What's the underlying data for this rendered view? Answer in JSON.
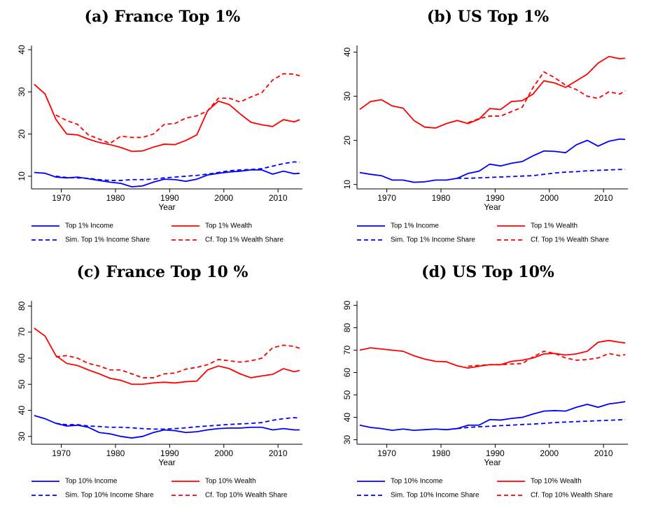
{
  "chart_data": [
    {
      "type": "line",
      "title": "(a) France Top 1%",
      "xlabel": "Year",
      "x": [
        1965,
        1967,
        1969,
        1971,
        1973,
        1975,
        1977,
        1979,
        1981,
        1983,
        1985,
        1987,
        1989,
        1991,
        1993,
        1995,
        1997,
        1999,
        2001,
        2003,
        2005,
        2007,
        2009,
        2011,
        2013,
        2014
      ],
      "xlim": [
        1964.5,
        2014.5
      ],
      "xticks": [
        1970,
        1980,
        1990,
        2000,
        2010
      ],
      "ylim": [
        7,
        41
      ],
      "yticks": [
        10,
        20,
        30,
        40
      ],
      "series": [
        {
          "name": "Top 1% Income",
          "color": "#0000ff",
          "dashed": false,
          "values": [
            10.9,
            10.7,
            9.8,
            9.6,
            9.8,
            9.4,
            9.0,
            8.6,
            8.3,
            7.5,
            7.7,
            8.6,
            9.3,
            9.2,
            8.8,
            9.3,
            10.3,
            10.7,
            11.0,
            11.2,
            11.5,
            11.5,
            10.5,
            11.2,
            10.6,
            10.7
          ]
        },
        {
          "name": "Top 1% Wealth",
          "color": "#ff0000",
          "dashed": false,
          "values": [
            31.8,
            29.5,
            23.5,
            20.0,
            19.8,
            18.8,
            18.0,
            17.5,
            16.8,
            15.9,
            16.0,
            16.9,
            17.6,
            17.5,
            18.5,
            19.8,
            25.5,
            27.8,
            27.0,
            24.8,
            22.8,
            22.2,
            21.8,
            23.4,
            22.9,
            23.4
          ]
        },
        {
          "name": "Sim. Top 1% Income Share",
          "color": "#0000ff",
          "dashed": true,
          "values": [
            null,
            null,
            10.0,
            9.7,
            9.6,
            9.5,
            9.2,
            9.0,
            9.0,
            9.2,
            9.2,
            9.3,
            9.6,
            9.8,
            10.0,
            10.2,
            10.5,
            10.9,
            11.3,
            11.5,
            11.6,
            11.8,
            12.4,
            13.0,
            13.4,
            13.3
          ]
        },
        {
          "name": "Cf. Top 1% Wealth Share",
          "color": "#ff0000",
          "dashed": true,
          "values": [
            null,
            null,
            24.5,
            23.2,
            22.3,
            19.8,
            18.8,
            17.8,
            19.5,
            19.2,
            19.2,
            20.0,
            22.3,
            22.5,
            23.8,
            24.3,
            25.5,
            28.5,
            28.5,
            27.6,
            28.8,
            29.8,
            32.8,
            34.3,
            34.2,
            33.8
          ]
        }
      ]
    },
    {
      "type": "line",
      "title": "(b) US Top 1%",
      "xlabel": "Year",
      "x": [
        1965,
        1967,
        1969,
        1971,
        1973,
        1975,
        1977,
        1979,
        1981,
        1983,
        1985,
        1987,
        1989,
        1991,
        1993,
        1995,
        1997,
        1999,
        2001,
        2003,
        2005,
        2007,
        2009,
        2011,
        2013,
        2014
      ],
      "xlim": [
        1964.5,
        2014.5
      ],
      "xticks": [
        1970,
        1980,
        1990,
        2000,
        2010
      ],
      "ylim": [
        9,
        41.5
      ],
      "yticks": [
        10,
        20,
        30,
        40
      ],
      "series": [
        {
          "name": "Top 1% Income",
          "color": "#0000ff",
          "dashed": false,
          "values": [
            12.7,
            12.3,
            12.0,
            11.0,
            11.0,
            10.5,
            10.6,
            11.0,
            11.0,
            11.4,
            12.5,
            13.0,
            14.6,
            14.2,
            14.8,
            15.2,
            16.5,
            17.6,
            17.5,
            17.2,
            19.0,
            20.0,
            18.7,
            19.8,
            20.3,
            20.2
          ]
        },
        {
          "name": "Top 1% Wealth",
          "color": "#ff0000",
          "dashed": false,
          "values": [
            27.0,
            28.8,
            29.2,
            27.8,
            27.3,
            24.5,
            23.0,
            22.8,
            23.8,
            24.5,
            23.8,
            24.8,
            27.2,
            27.0,
            28.8,
            29.0,
            30.5,
            33.5,
            33.0,
            32.0,
            33.5,
            35.0,
            37.5,
            39.0,
            38.5,
            38.6
          ]
        },
        {
          "name": "Sim. Top 1% Income Share",
          "color": "#0000ff",
          "dashed": true,
          "values": [
            null,
            null,
            null,
            null,
            null,
            null,
            null,
            null,
            null,
            11.4,
            11.4,
            11.5,
            11.6,
            11.7,
            11.8,
            11.9,
            12.0,
            12.3,
            12.6,
            12.8,
            12.9,
            13.1,
            13.2,
            13.3,
            13.4,
            13.4
          ]
        },
        {
          "name": "Cf. Top 1% Wealth Share",
          "color": "#ff0000",
          "dashed": true,
          "values": [
            null,
            null,
            null,
            null,
            null,
            null,
            null,
            null,
            null,
            null,
            24.0,
            24.9,
            25.5,
            25.5,
            26.5,
            27.5,
            32.0,
            35.5,
            34.2,
            32.5,
            31.5,
            30.0,
            29.5,
            31.0,
            30.5,
            31.2
          ]
        }
      ]
    },
    {
      "type": "line",
      "title": "(c) France Top 10 %",
      "xlabel": "Year",
      "x": [
        1965,
        1967,
        1969,
        1971,
        1973,
        1975,
        1977,
        1979,
        1981,
        1983,
        1985,
        1987,
        1989,
        1991,
        1993,
        1995,
        1997,
        1999,
        2001,
        2003,
        2005,
        2007,
        2009,
        2011,
        2013,
        2014
      ],
      "xlim": [
        1964.5,
        2014.5
      ],
      "xticks": [
        1970,
        1980,
        1990,
        2000,
        2010
      ],
      "ylim": [
        27,
        82
      ],
      "yticks": [
        30,
        40,
        50,
        60,
        70,
        80
      ],
      "series": [
        {
          "name": "Top 10% Income",
          "color": "#0000ff",
          "dashed": false,
          "values": [
            38.0,
            36.8,
            35.0,
            34.0,
            34.3,
            33.5,
            31.5,
            31.0,
            30.0,
            29.4,
            30.0,
            31.5,
            32.5,
            32.2,
            31.5,
            31.8,
            32.5,
            33.0,
            33.2,
            33.2,
            33.5,
            33.5,
            32.5,
            33.0,
            32.5,
            32.5
          ]
        },
        {
          "name": "Top 10% Wealth",
          "color": "#ff0000",
          "dashed": false,
          "values": [
            71.5,
            68.5,
            61.0,
            58.0,
            57.2,
            55.5,
            54.0,
            52.3,
            51.5,
            50.0,
            50.0,
            50.5,
            50.8,
            50.5,
            51.0,
            51.2,
            55.5,
            57.0,
            56.0,
            54.0,
            52.5,
            53.2,
            53.8,
            56.0,
            54.8,
            55.3
          ]
        },
        {
          "name": "Sim. Top 10% Income Share",
          "color": "#0000ff",
          "dashed": true,
          "values": [
            null,
            null,
            35.0,
            34.5,
            34.5,
            34.0,
            33.8,
            33.5,
            33.5,
            33.3,
            33.0,
            32.8,
            32.8,
            33.0,
            33.3,
            33.7,
            34.0,
            34.3,
            34.6,
            34.8,
            35.0,
            35.3,
            36.2,
            36.8,
            37.2,
            37.0
          ]
        },
        {
          "name": "Cf. Top 10% Wealth Share",
          "color": "#ff0000",
          "dashed": true,
          "values": [
            null,
            null,
            60.5,
            61.0,
            60.0,
            58.0,
            57.0,
            55.5,
            55.5,
            54.0,
            52.5,
            52.5,
            54.0,
            54.3,
            55.8,
            56.5,
            57.5,
            59.5,
            59.0,
            58.5,
            59.0,
            60.0,
            64.0,
            65.0,
            64.5,
            63.8
          ]
        }
      ]
    },
    {
      "type": "line",
      "title": "(d) US Top 10%",
      "xlabel": "Year",
      "x": [
        1965,
        1967,
        1969,
        1971,
        1973,
        1975,
        1977,
        1979,
        1981,
        1983,
        1985,
        1987,
        1989,
        1991,
        1993,
        1995,
        1997,
        1999,
        2001,
        2003,
        2005,
        2007,
        2009,
        2011,
        2013,
        2014
      ],
      "xlim": [
        1964.5,
        2014.5
      ],
      "xticks": [
        1970,
        1980,
        1990,
        2000,
        2010
      ],
      "ylim": [
        28,
        92
      ],
      "yticks": [
        30,
        40,
        50,
        60,
        70,
        80,
        90
      ],
      "series": [
        {
          "name": "Top 10% Income",
          "color": "#0000ff",
          "dashed": false,
          "values": [
            36.5,
            35.5,
            35.0,
            34.2,
            34.8,
            34.2,
            34.5,
            34.8,
            34.5,
            35.0,
            36.5,
            36.5,
            39.0,
            38.8,
            39.5,
            40.0,
            41.5,
            42.8,
            43.0,
            42.8,
            44.5,
            45.8,
            44.5,
            46.0,
            46.6,
            47.0
          ]
        },
        {
          "name": "Top 10% Wealth",
          "color": "#ff0000",
          "dashed": false,
          "values": [
            70.0,
            71.0,
            70.5,
            70.0,
            69.5,
            67.5,
            66.0,
            65.0,
            64.8,
            63.0,
            62.0,
            62.8,
            63.5,
            63.5,
            65.0,
            65.5,
            66.5,
            68.3,
            68.5,
            67.8,
            68.3,
            69.5,
            73.5,
            74.3,
            73.5,
            73.2
          ]
        },
        {
          "name": "Sim. Top 10% Income Share",
          "color": "#0000ff",
          "dashed": true,
          "values": [
            null,
            null,
            null,
            null,
            null,
            null,
            null,
            null,
            null,
            35.0,
            35.5,
            35.8,
            36.0,
            36.3,
            36.5,
            36.8,
            37.0,
            37.3,
            37.7,
            37.9,
            38.1,
            38.3,
            38.5,
            38.7,
            38.9,
            39.0
          ]
        },
        {
          "name": "Cf. Top 10% Wealth Share",
          "color": "#ff0000",
          "dashed": true,
          "values": [
            null,
            null,
            null,
            null,
            null,
            null,
            null,
            null,
            null,
            null,
            62.8,
            63.2,
            63.5,
            63.5,
            63.8,
            64.0,
            67.0,
            69.5,
            68.5,
            66.5,
            65.5,
            65.8,
            66.5,
            68.5,
            67.5,
            68.0
          ]
        }
      ]
    }
  ]
}
